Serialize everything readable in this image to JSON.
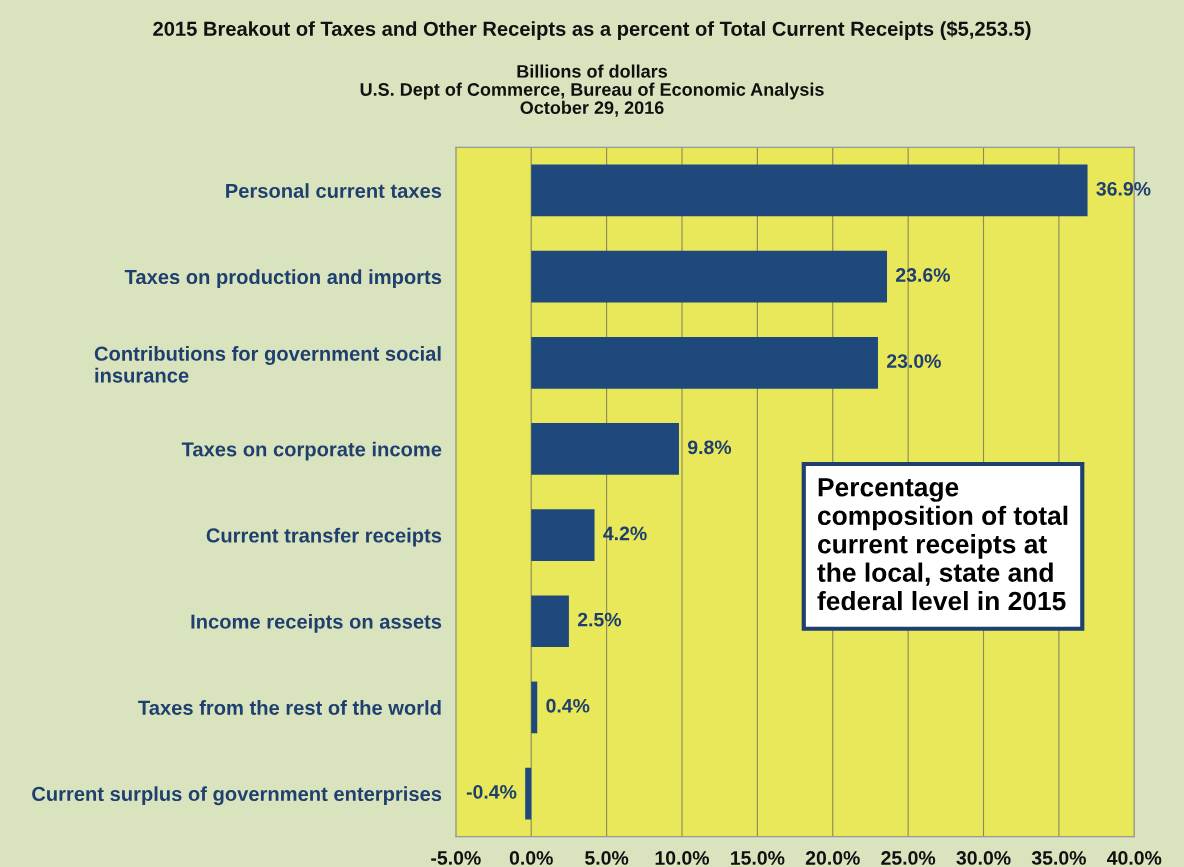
{
  "chart_data": {
    "type": "bar",
    "orientation": "horizontal",
    "title": "2015 Breakout of Taxes and Other Receipts as a percent of Total Current Receipts ($5,253.5)",
    "subtitle": "Billions of dollars\nU.S. Dept of Commerce, Bureau of Economic Analysis\nOctober 29, 2016",
    "categories": [
      "Personal current taxes",
      "Taxes on production and imports",
      "Contributions for government social\ninsurance",
      "Taxes on corporate income",
      "Current transfer receipts",
      "Income receipts on assets",
      "Taxes from the rest of the world",
      "Current surplus of government enterprises"
    ],
    "values": [
      36.9,
      23.6,
      23.0,
      9.8,
      4.2,
      2.5,
      0.4,
      -0.4
    ],
    "value_labels": [
      "36.9%",
      "23.6%",
      "23.0%",
      "9.8%",
      "4.2%",
      "2.5%",
      "0.4%",
      "-0.4%"
    ],
    "color": "#1f497d",
    "xlim": [
      -5,
      40
    ],
    "xticks": [
      {
        "value": -5,
        "label": "-5.0%"
      },
      {
        "value": 0,
        "label": "0.0%"
      },
      {
        "value": 5,
        "label": "5.0%"
      },
      {
        "value": 10,
        "label": "10.0%"
      },
      {
        "value": 15,
        "label": "15.0%"
      },
      {
        "value": 20,
        "label": "20.0%"
      },
      {
        "value": 25,
        "label": "25.0%"
      },
      {
        "value": 30,
        "label": "30.0%"
      },
      {
        "value": 35,
        "label": "35.0%"
      },
      {
        "value": 40,
        "label": "40.0%"
      }
    ],
    "grid": "x",
    "annotations": [
      "Percentage\ncomposition of total\ncurrent receipts at\nthe local, state and\nfederal level in 2015"
    ]
  }
}
